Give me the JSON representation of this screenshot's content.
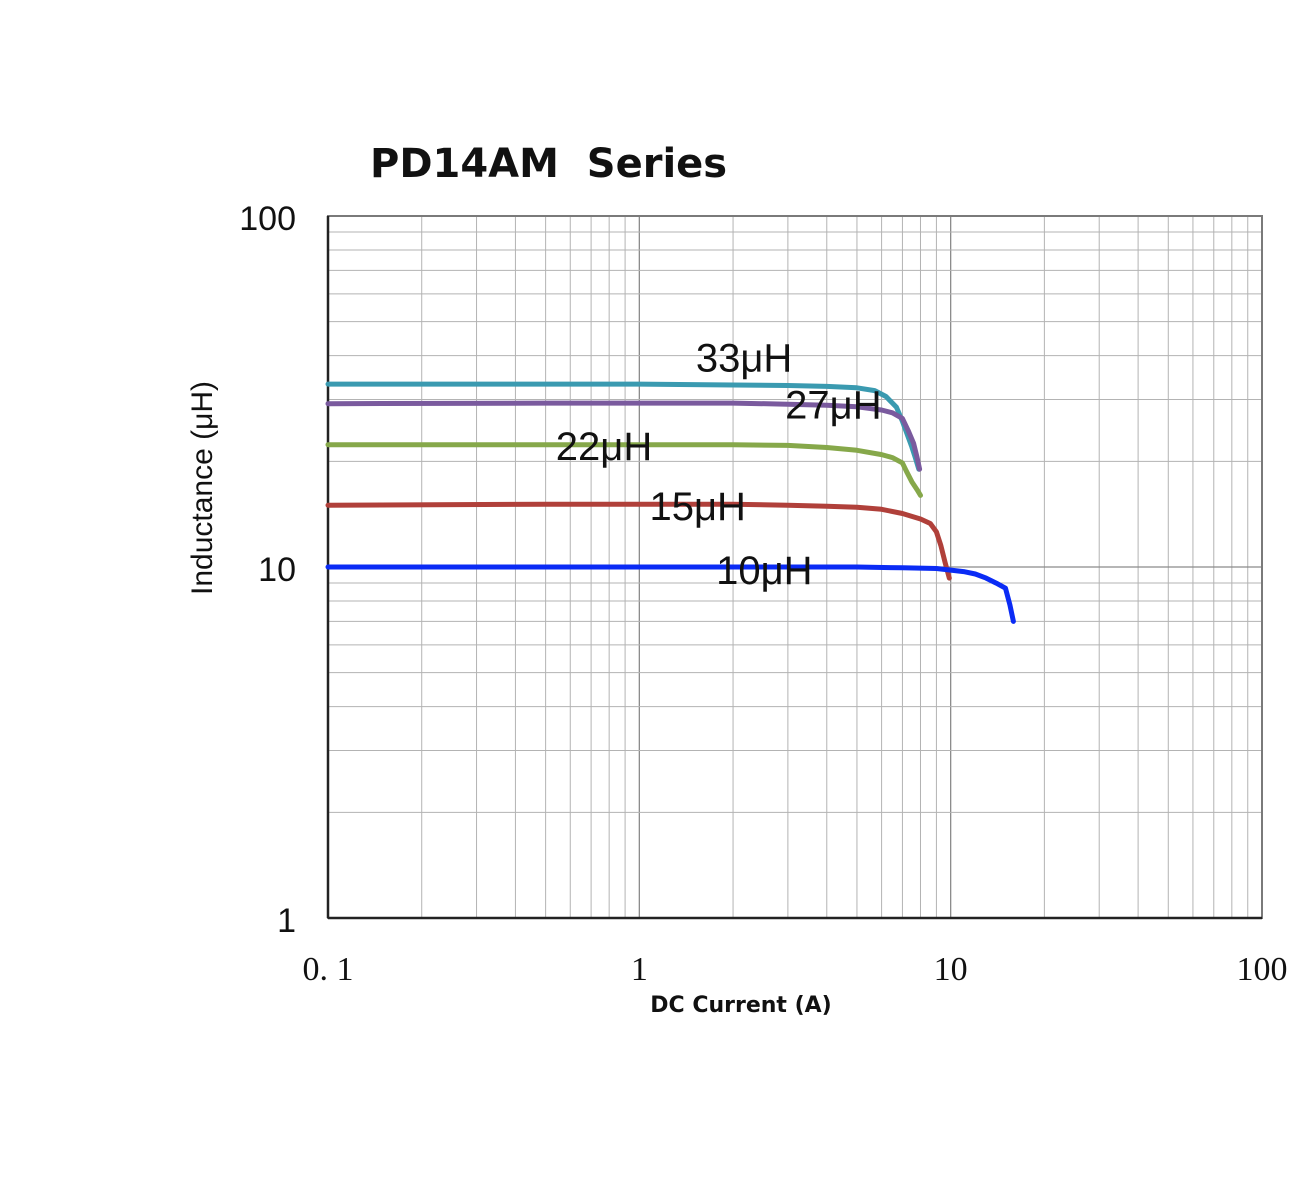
{
  "chart_data": {
    "type": "line",
    "title": "PD14AM  Series",
    "xlabel": "DC Current (A)",
    "ylabel": "Inductance (μH)",
    "xscale": "log",
    "yscale": "log",
    "xlim": [
      0.1,
      100
    ],
    "ylim": [
      1,
      100
    ],
    "xticks": [
      "0. 1",
      "1",
      "10",
      "100"
    ],
    "yticks": [
      "1",
      "10",
      "100"
    ],
    "grid": true,
    "series": [
      {
        "name": "33μH",
        "color": "#3a9ab0",
        "x": [
          0.1,
          0.5,
          1,
          2,
          3,
          4,
          5,
          5.7,
          6.2,
          6.7,
          7.0,
          7.3,
          7.5,
          7.7,
          7.9
        ],
        "y": [
          33.2,
          33.2,
          33.2,
          33.0,
          32.9,
          32.7,
          32.4,
          31.8,
          30.6,
          28.5,
          26.0,
          23.5,
          22.0,
          20.5,
          19.0
        ]
      },
      {
        "name": "27μH",
        "color": "#7a5a9e",
        "x": [
          0.1,
          0.5,
          1,
          2,
          3,
          4,
          5,
          6,
          6.5,
          7.0,
          7.3,
          7.6,
          7.8,
          7.95
        ],
        "y": [
          29.2,
          29.3,
          29.3,
          29.3,
          29.1,
          28.9,
          28.6,
          28.0,
          27.5,
          26.5,
          24.5,
          22.5,
          20.5,
          19.0
        ]
      },
      {
        "name": "22μH",
        "color": "#86a84a",
        "x": [
          0.1,
          0.5,
          1,
          2,
          3,
          4,
          5,
          6,
          6.5,
          7.0,
          7.2,
          7.5,
          7.8,
          8.0
        ],
        "y": [
          22.3,
          22.3,
          22.3,
          22.3,
          22.2,
          21.9,
          21.5,
          20.9,
          20.5,
          19.8,
          18.8,
          17.5,
          16.6,
          16.0
        ]
      },
      {
        "name": "15μH",
        "color": "#b0403a",
        "x": [
          0.1,
          0.5,
          1,
          2,
          3,
          4,
          5,
          6,
          7,
          8,
          8.6,
          9.0,
          9.3,
          9.6,
          9.9
        ],
        "y": [
          15.0,
          15.1,
          15.1,
          15.1,
          15.0,
          14.9,
          14.8,
          14.6,
          14.2,
          13.7,
          13.3,
          12.6,
          11.5,
          10.3,
          9.3
        ]
      },
      {
        "name": "10μH",
        "color": "#0a2bf5",
        "x": [
          0.1,
          0.5,
          1,
          2,
          3,
          5,
          7,
          9,
          10,
          11,
          12,
          13,
          14,
          15,
          15.5,
          15.9
        ],
        "y": [
          10.0,
          10.0,
          10.0,
          10.0,
          10.0,
          10.0,
          9.95,
          9.9,
          9.8,
          9.7,
          9.55,
          9.3,
          9.0,
          8.7,
          7.8,
          7.0
        ]
      }
    ]
  }
}
